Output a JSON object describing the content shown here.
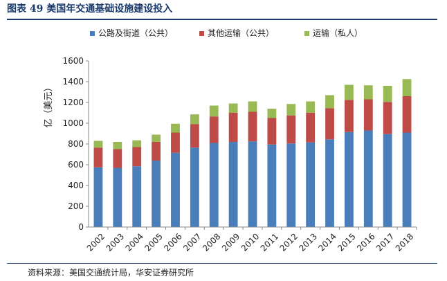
{
  "figure": {
    "title": "图表 49  美国年交通基础设施建设投入",
    "source": "资料来源：美国交通统计局，华安证券研究所"
  },
  "chart_data": {
    "type": "bar",
    "stacked": true,
    "categories": [
      "2002",
      "2003",
      "2004",
      "2005",
      "2006",
      "2007",
      "2008",
      "2009",
      "2010",
      "2011",
      "2012",
      "2013",
      "2014",
      "2015",
      "2016",
      "2017",
      "2018"
    ],
    "series": [
      {
        "name": "公路及街道（公共）",
        "color": "#4a7ebb",
        "values": [
          575,
          570,
          585,
          640,
          715,
          765,
          810,
          820,
          825,
          795,
          805,
          815,
          845,
          915,
          930,
          895,
          910
        ]
      },
      {
        "name": "其他运输（公共）",
        "color": "#be4b48",
        "values": [
          190,
          180,
          185,
          180,
          195,
          225,
          255,
          280,
          285,
          255,
          270,
          285,
          300,
          310,
          300,
          310,
          350
        ]
      },
      {
        "name": "运输（私人）",
        "color": "#98b954",
        "values": [
          65,
          70,
          65,
          70,
          85,
          95,
          105,
          90,
          100,
          90,
          110,
          110,
          125,
          145,
          135,
          155,
          165
        ]
      }
    ],
    "ylabel": "亿（美元）",
    "ylim": [
      0,
      1600
    ],
    "yticks": [
      0,
      200,
      400,
      600,
      800,
      1000,
      1200,
      1400,
      1600
    ],
    "legend_position": "top"
  }
}
